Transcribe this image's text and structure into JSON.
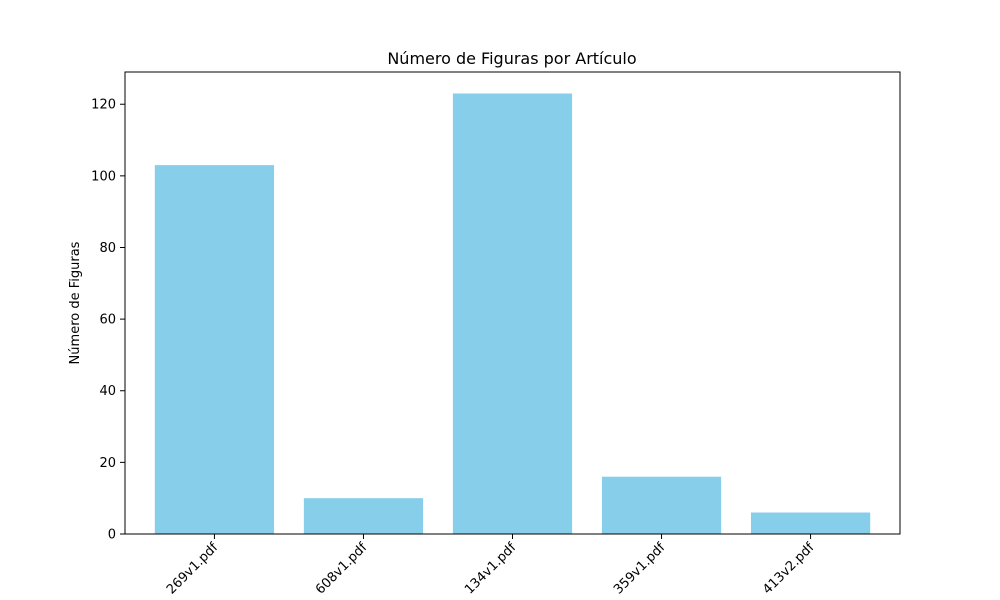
{
  "chart_data": {
    "type": "bar",
    "title": "Número de Figuras por Artículo",
    "xlabel": "",
    "ylabel": "Número de Figuras",
    "categories": [
      "269v1.pdf",
      "608v1.pdf",
      "134v1.pdf",
      "359v1.pdf",
      "413v2.pdf"
    ],
    "values": [
      103,
      10,
      123,
      16,
      6
    ],
    "ylim": [
      0,
      129
    ],
    "yticks": [
      0,
      20,
      40,
      60,
      80,
      100,
      120
    ],
    "bar_color": "#87ceeb",
    "grid": false,
    "legend": "none"
  }
}
